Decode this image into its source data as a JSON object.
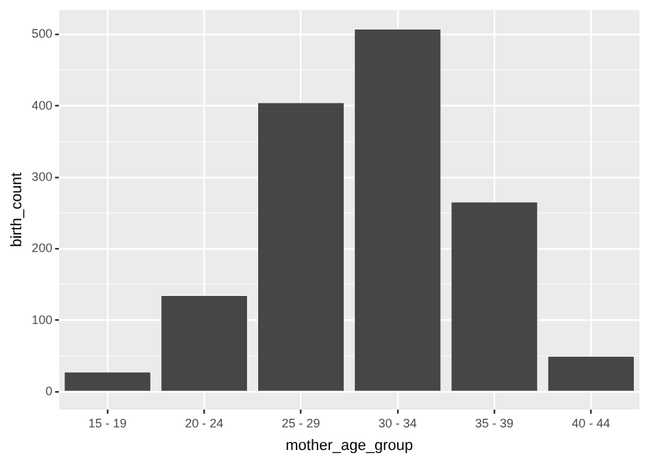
{
  "chart_data": {
    "type": "bar",
    "xlabel": "mother_age_group",
    "ylabel": "birth_count",
    "categories": [
      "15 - 19",
      "20 - 24",
      "25 - 29",
      "30 - 34",
      "35 - 39",
      "40 - 44"
    ],
    "values": [
      28,
      135,
      405,
      508,
      266,
      50
    ],
    "color": "#464646",
    "ylim": [
      -25,
      534
    ],
    "yticks": [
      0,
      {
        "value": 50,
        "label": null
      },
      100,
      {
        "value": 150,
        "label": null
      },
      200,
      {
        "value": 250,
        "label": null
      },
      300,
      {
        "value": 350,
        "label": null
      },
      400,
      {
        "value": 450,
        "label": null
      },
      500
    ],
    "grid": true
  }
}
